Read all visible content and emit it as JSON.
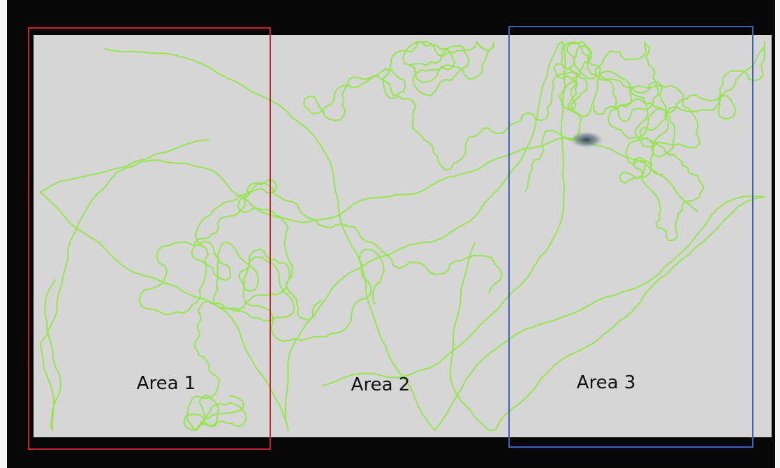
{
  "areas": [
    {
      "label": "Area 1"
    },
    {
      "label": "Area 2"
    },
    {
      "label": "Area 3"
    }
  ]
}
